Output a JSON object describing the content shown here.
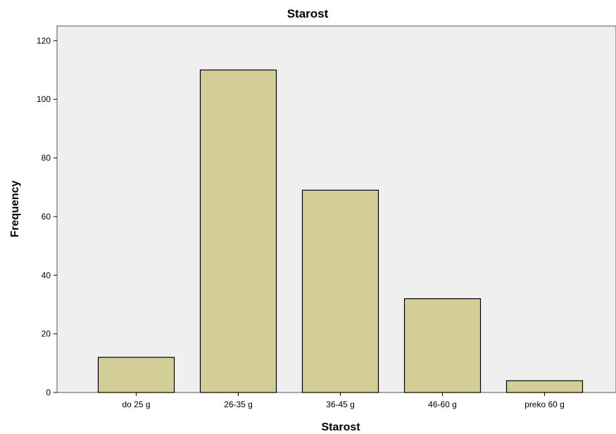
{
  "chart_data": {
    "type": "bar",
    "title": "Starost",
    "xlabel": "Starost",
    "ylabel": "Frequency",
    "categories": [
      "do 25 g",
      "26-35 g",
      "36-45 g",
      "46-60 g",
      "preko 60 g"
    ],
    "values": [
      12,
      110,
      69,
      32,
      4
    ],
    "ylim": [
      0,
      125
    ],
    "yticks": [
      0,
      20,
      40,
      60,
      80,
      100,
      120
    ],
    "grid": false,
    "legend": "none",
    "colors": {
      "bar_fill": "#d3ce97",
      "bar_stroke": "#000000",
      "plot_background": "#efefef",
      "frame": "#555555"
    }
  }
}
